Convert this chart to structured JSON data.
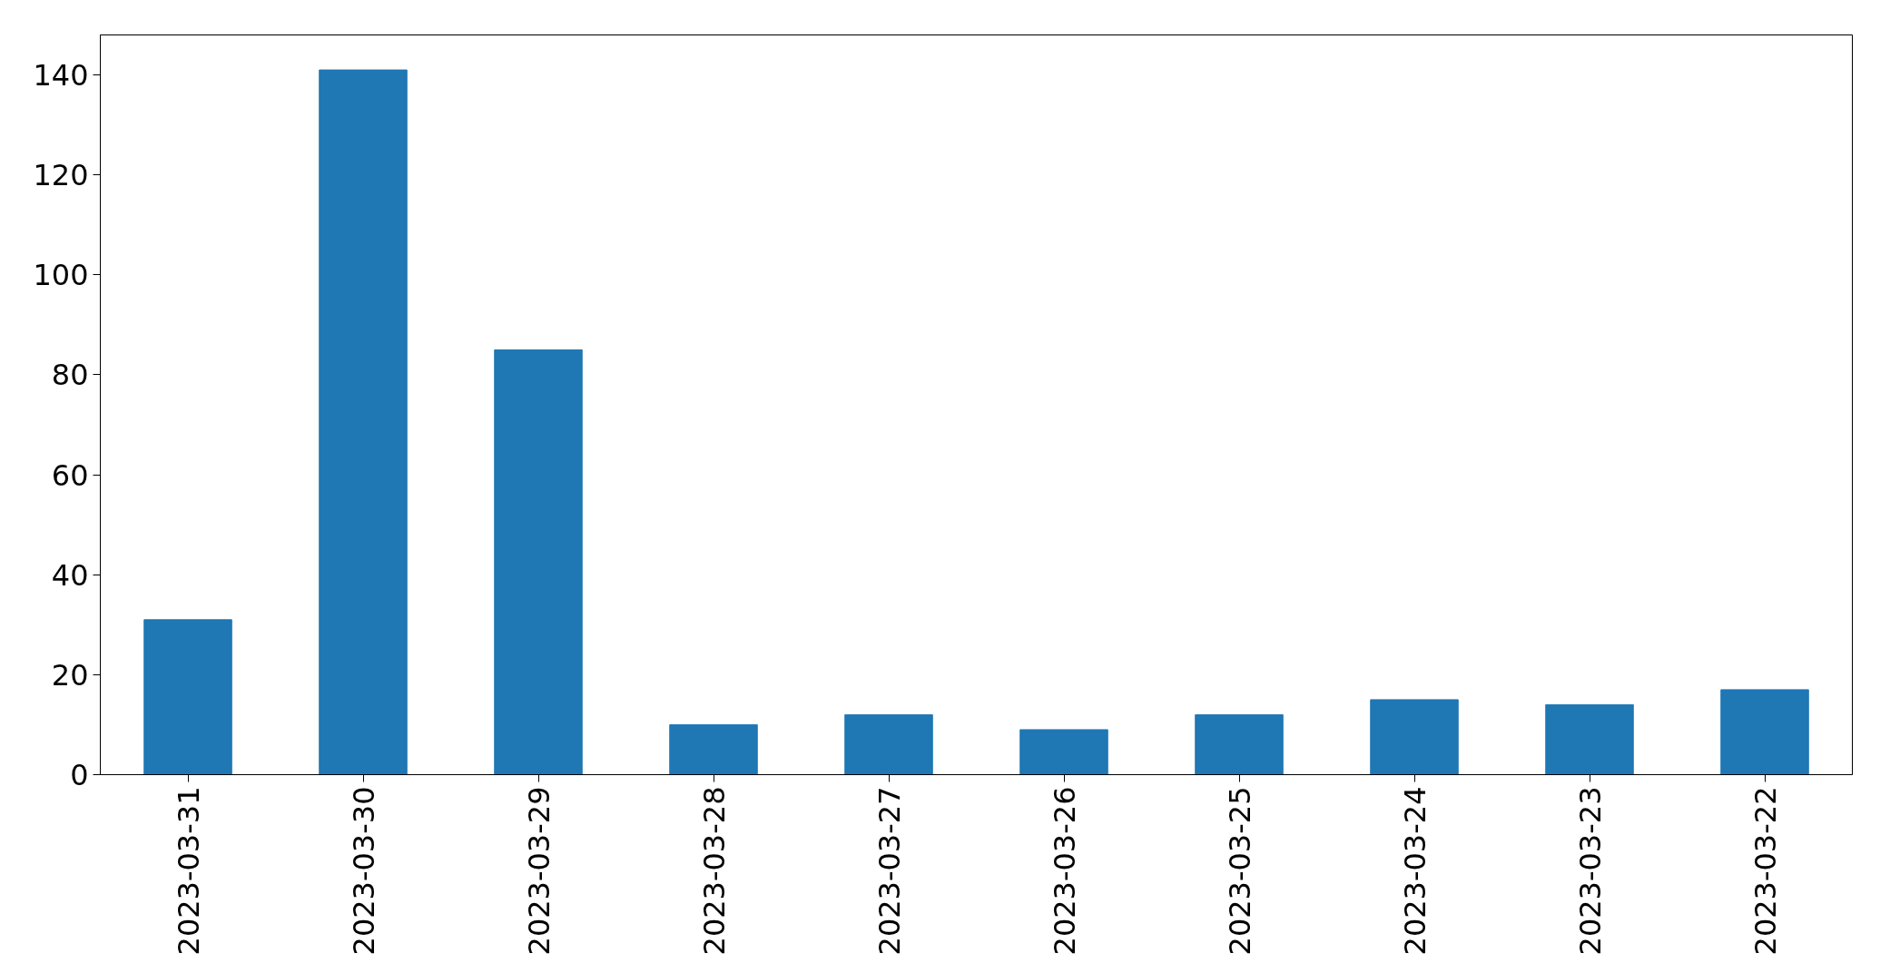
{
  "chart_data": {
    "type": "bar",
    "categories": [
      "2023-03-31",
      "2023-03-30",
      "2023-03-29",
      "2023-03-28",
      "2023-03-27",
      "2023-03-26",
      "2023-03-25",
      "2023-03-24",
      "2023-03-23",
      "2023-03-22"
    ],
    "values": [
      31,
      141,
      85,
      10,
      12,
      9,
      12,
      15,
      14,
      17
    ],
    "color": "#1f77b4",
    "ylim": [
      0,
      148
    ],
    "yticks": [
      0,
      20,
      40,
      60,
      80,
      100,
      120,
      140
    ],
    "grid": false
  }
}
